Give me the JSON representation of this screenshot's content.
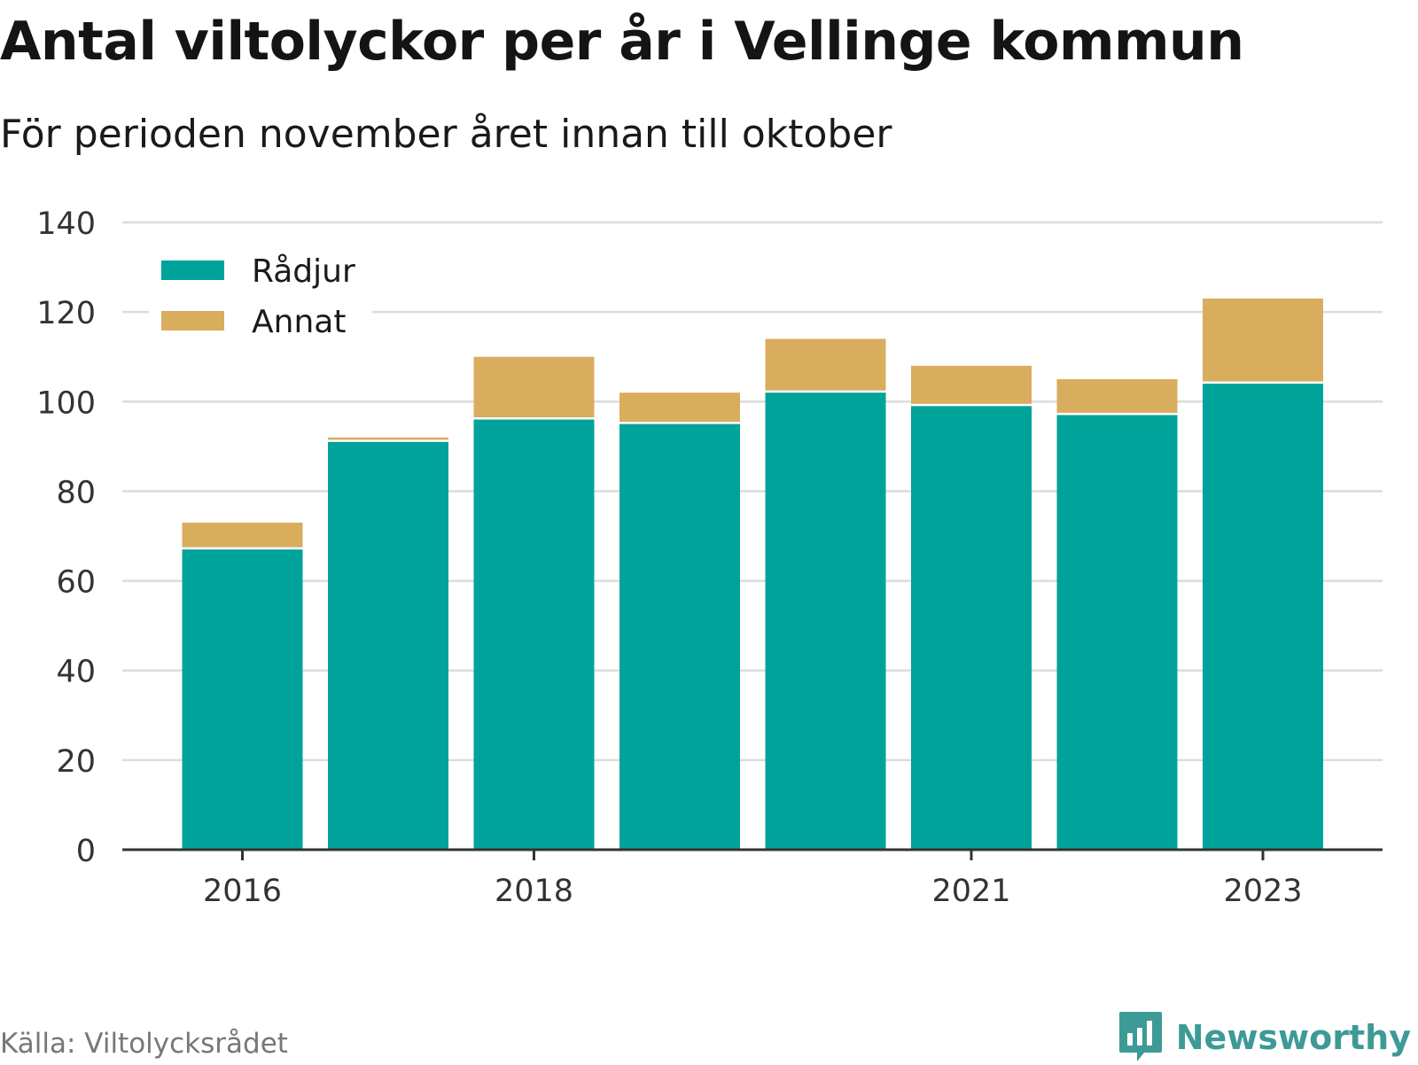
{
  "header": {
    "title": "Antal viltolyckor per år i Vellinge kommun",
    "subtitle": "För perioden november året innan till oktober"
  },
  "footer": {
    "source": "Källa: Viltolycksrådet",
    "brand": "Newsworthy",
    "brand_icon": "bar-chart-speech-bubble-icon",
    "brand_color": "#3d9a96"
  },
  "chart_data": {
    "type": "bar",
    "stacked": true,
    "categories": [
      "2016",
      "2017",
      "2018",
      "2019",
      "2020",
      "2021",
      "2022",
      "2023"
    ],
    "tick_labels": [
      "2016",
      "2018",
      "2021",
      "2023"
    ],
    "series": [
      {
        "name": "Rådjur",
        "color": "#00a39a",
        "values": [
          67,
          91,
          96,
          95,
          102,
          99,
          97,
          104
        ]
      },
      {
        "name": "Annat",
        "color": "#d9ad5e",
        "values": [
          6,
          1,
          14,
          7,
          12,
          9,
          8,
          19
        ]
      }
    ],
    "ylim": [
      0,
      140
    ],
    "yticks": [
      0,
      20,
      40,
      60,
      80,
      100,
      120,
      140
    ],
    "grid": true,
    "legend_position": "top-left"
  }
}
